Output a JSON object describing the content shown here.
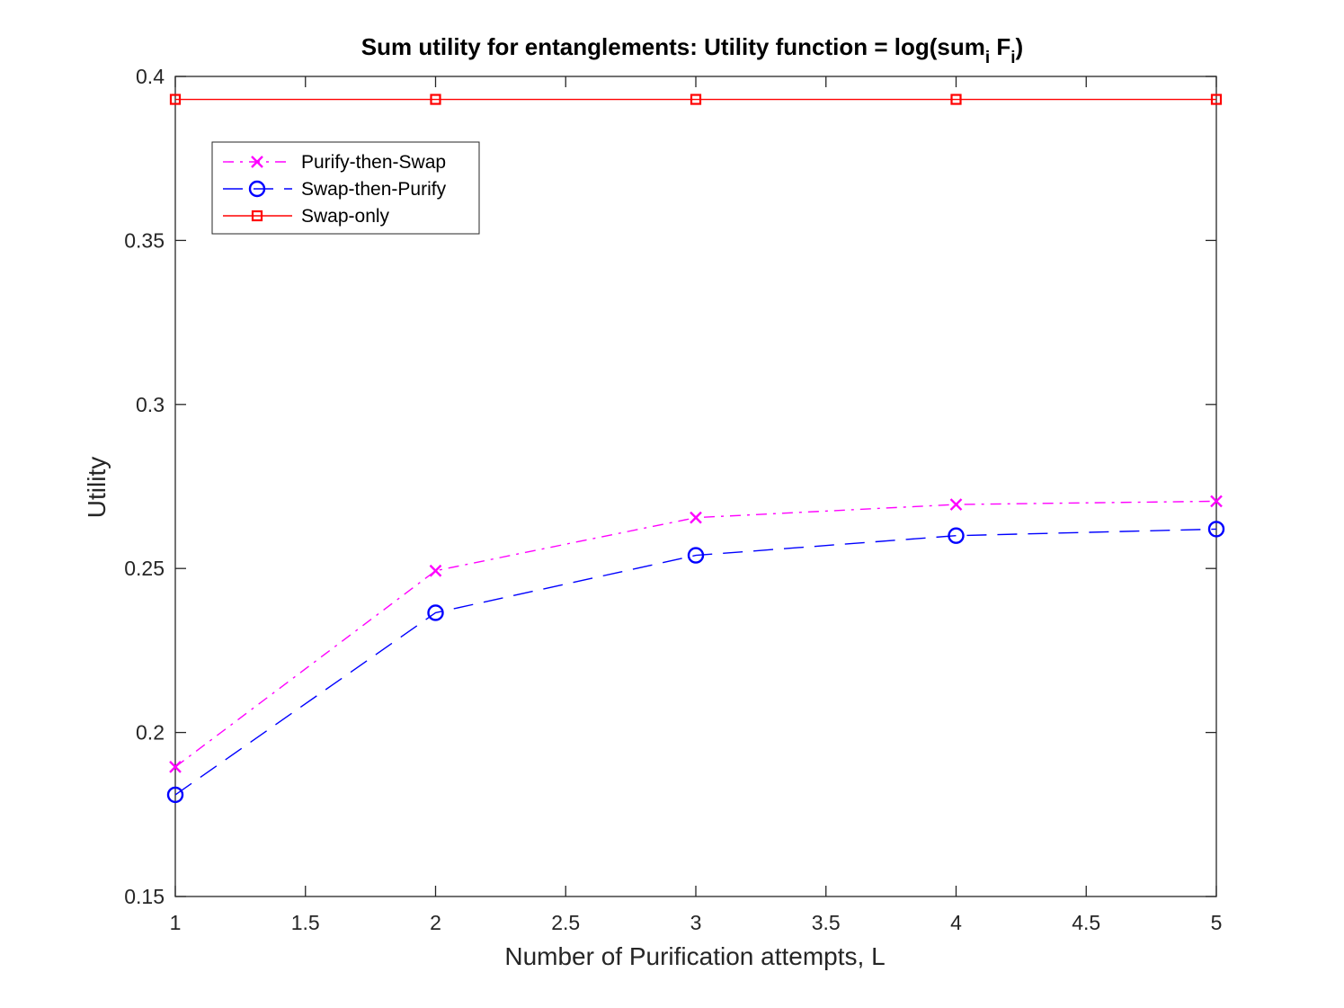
{
  "chart_data": {
    "type": "line",
    "title": "Sum utility for entanglements: Utility function = log(sum",
    "title_sub1": "i",
    "title_mid": " F",
    "title_sub2": "i",
    "title_end": ")",
    "xlabel": "Number of Purification attempts, L",
    "ylabel": "Utility",
    "xlim": [
      1,
      5
    ],
    "ylim": [
      0.15,
      0.4
    ],
    "xticks": [
      1,
      1.5,
      2,
      2.5,
      3,
      3.5,
      4,
      4.5,
      5
    ],
    "xtick_labels": [
      "1",
      "1.5",
      "2",
      "2.5",
      "3",
      "3.5",
      "4",
      "4.5",
      "5"
    ],
    "yticks": [
      0.15,
      0.2,
      0.25,
      0.3,
      0.35,
      0.4
    ],
    "ytick_labels": [
      "0.15",
      "0.2",
      "0.25",
      "0.3",
      "0.35",
      "0.4"
    ],
    "grid": false,
    "legend_position": "top-left",
    "x": [
      1,
      2,
      3,
      4,
      5
    ],
    "series": [
      {
        "name": "Purify-then-Swap",
        "values": [
          0.1895,
          0.2493,
          0.2655,
          0.2695,
          0.2705
        ],
        "color": "#FF00FF",
        "marker": "x",
        "line_style": "dash-dot"
      },
      {
        "name": "Swap-then-Purify",
        "values": [
          0.181,
          0.2365,
          0.254,
          0.26,
          0.262
        ],
        "color": "#0000FF",
        "marker": "circle",
        "line_style": "dashed"
      },
      {
        "name": "Swap-only",
        "values": [
          0.393,
          0.393,
          0.393,
          0.393,
          0.393
        ],
        "color": "#FF0000",
        "marker": "square",
        "line_style": "solid"
      }
    ]
  }
}
